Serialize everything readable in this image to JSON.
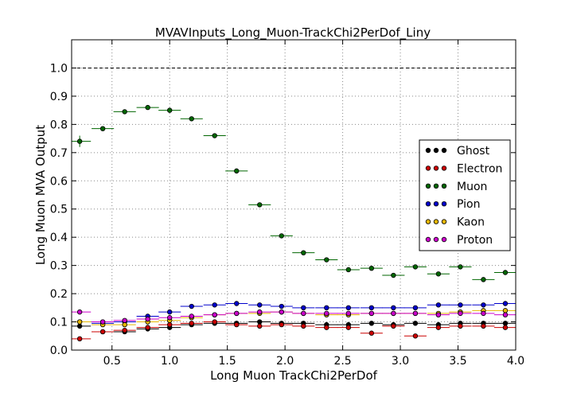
{
  "chart_data": {
    "type": "scatter",
    "title": "MVAVInputs_Long_Muon-TrackChi2PerDof_Liny",
    "xlabel": "Long Muon TrackChi2PerDof",
    "ylabel": "Long Muon MVA Output",
    "xlim": [
      0.15,
      4.0
    ],
    "ylim": [
      0.0,
      1.1
    ],
    "x_ticks": [
      "0.5",
      "1.0",
      "1.5",
      "2.0",
      "2.5",
      "3.0",
      "3.5",
      "4.0"
    ],
    "y_ticks": [
      "0.0",
      "0.1",
      "0.2",
      "0.3",
      "0.4",
      "0.5",
      "0.6",
      "0.7",
      "0.8",
      "0.9",
      "1.0"
    ],
    "grid": true,
    "reference_line": 1.0,
    "legend_position": "right",
    "x": [
      0.22,
      0.42,
      0.61,
      0.81,
      1.0,
      1.19,
      1.39,
      1.58,
      1.78,
      1.97,
      2.16,
      2.36,
      2.55,
      2.75,
      2.94,
      3.13,
      3.33,
      3.52,
      3.72,
      3.91
    ],
    "x_halfwidth": 0.097,
    "series": [
      {
        "name": "Ghost",
        "color": "#000000",
        "values": [
          0.085,
          0.065,
          0.065,
          0.075,
          0.08,
          0.09,
          0.095,
          0.095,
          0.1,
          0.095,
          0.095,
          0.09,
          0.09,
          0.095,
          0.09,
          0.095,
          0.09,
          0.095,
          0.095,
          0.095
        ]
      },
      {
        "name": "Electron",
        "color": "#cc0000",
        "values": [
          0.04,
          0.065,
          0.07,
          0.08,
          0.09,
          0.095,
          0.1,
          0.09,
          0.085,
          0.09,
          0.085,
          0.08,
          0.08,
          0.06,
          0.085,
          0.05,
          0.08,
          0.085,
          0.085,
          0.08
        ]
      },
      {
        "name": "Muon",
        "color": "#006600",
        "values": [
          0.74,
          0.785,
          0.845,
          0.86,
          0.85,
          0.82,
          0.76,
          0.635,
          0.515,
          0.405,
          0.345,
          0.32,
          0.285,
          0.29,
          0.265,
          0.295,
          0.27,
          0.295,
          0.25,
          0.275
        ],
        "errors": [
          0.02,
          0.007,
          0.005,
          0.005,
          0.005,
          0.005,
          0.006,
          0.006,
          0.006,
          0.006,
          0.006,
          0.006,
          0.006,
          0.006,
          0.006,
          0.006,
          0.006,
          0.006,
          0.006,
          0.006
        ]
      },
      {
        "name": "Pion",
        "color": "#0000cc",
        "values": [
          0.1,
          0.095,
          0.1,
          0.12,
          0.135,
          0.155,
          0.16,
          0.165,
          0.16,
          0.155,
          0.15,
          0.15,
          0.15,
          0.15,
          0.15,
          0.15,
          0.16,
          0.16,
          0.16,
          0.165
        ]
      },
      {
        "name": "Kaon",
        "color": "#e6b800",
        "values": [
          0.1,
          0.09,
          0.09,
          0.1,
          0.105,
          0.115,
          0.125,
          0.13,
          0.13,
          0.135,
          0.13,
          0.125,
          0.125,
          0.13,
          0.13,
          0.13,
          0.13,
          0.135,
          0.14,
          0.14
        ]
      },
      {
        "name": "Proton",
        "color": "#cc00cc",
        "values": [
          0.135,
          0.1,
          0.105,
          0.11,
          0.115,
          0.12,
          0.125,
          0.13,
          0.135,
          0.135,
          0.13,
          0.13,
          0.13,
          0.13,
          0.13,
          0.13,
          0.125,
          0.13,
          0.13,
          0.125
        ]
      }
    ]
  }
}
